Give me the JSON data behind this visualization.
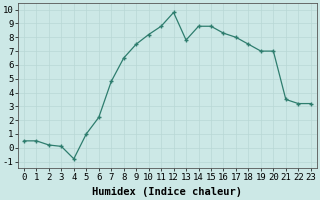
{
  "x": [
    0,
    1,
    2,
    3,
    4,
    5,
    6,
    7,
    8,
    9,
    10,
    11,
    12,
    13,
    14,
    15,
    16,
    17,
    18,
    19,
    20,
    21,
    22,
    23
  ],
  "y": [
    0.5,
    0.5,
    0.2,
    0.1,
    -0.8,
    1.0,
    2.2,
    4.8,
    6.5,
    7.5,
    8.2,
    8.8,
    9.8,
    7.8,
    8.8,
    8.8,
    8.3,
    8.0,
    7.5,
    7.0,
    7.0,
    3.5,
    3.2,
    3.2
  ],
  "xlim": [
    -0.5,
    23.5
  ],
  "ylim": [
    -1.5,
    10.5
  ],
  "yticks": [
    -1,
    0,
    1,
    2,
    3,
    4,
    5,
    6,
    7,
    8,
    9,
    10
  ],
  "xticks": [
    0,
    1,
    2,
    3,
    4,
    5,
    6,
    7,
    8,
    9,
    10,
    11,
    12,
    13,
    14,
    15,
    16,
    17,
    18,
    19,
    20,
    21,
    22,
    23
  ],
  "xlabel": "Humidex (Indice chaleur)",
  "line_color": "#2e7d6e",
  "marker": "+",
  "bg_color": "#cce8e6",
  "grid_color": "#b8d8d5",
  "label_fontsize": 7.5,
  "tick_fontsize": 6.5
}
